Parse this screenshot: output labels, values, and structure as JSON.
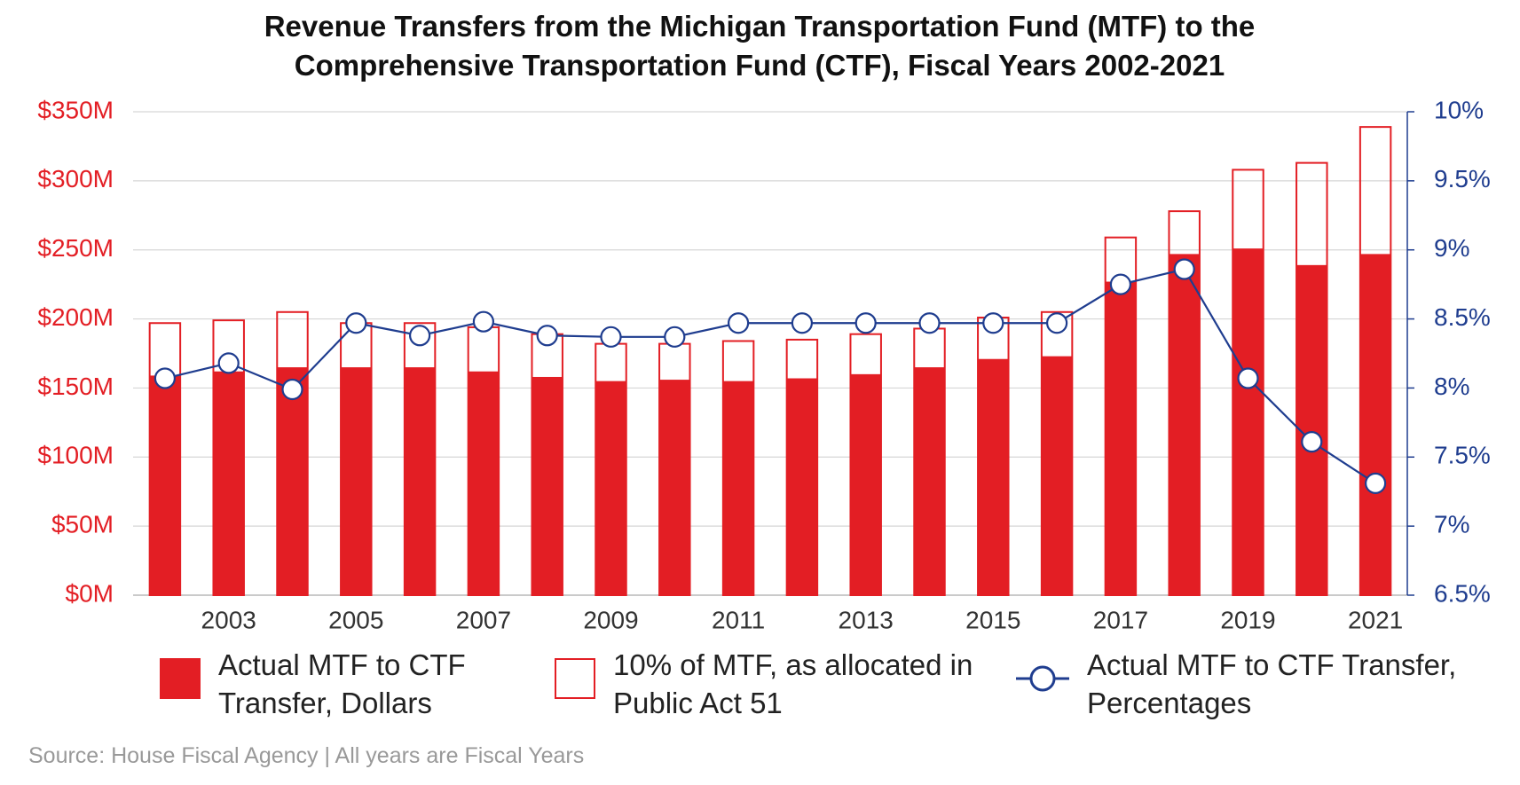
{
  "chart_data": {
    "type": "bar",
    "title": "Revenue Transfers from the Michigan Transportation Fund (MTF) to the Comprehensive Transportation Fund (CTF), Fiscal Years 2002-2021",
    "source": "Source: House Fiscal Agency | All years are Fiscal Years",
    "categories": [
      null,
      "2003",
      null,
      "2005",
      null,
      "2007",
      null,
      "2009",
      null,
      "2011",
      null,
      "2013",
      null,
      "2015",
      null,
      "2017",
      null,
      "2019",
      null,
      "2021"
    ],
    "series": [
      {
        "name": "Actual MTF to CTF Transfer, Dollars",
        "type": "bar",
        "fill": true,
        "color": "#e31e24",
        "values": [
          159,
          162,
          165,
          165,
          165,
          162,
          158,
          155,
          156,
          155,
          157,
          160,
          165,
          171,
          173,
          227,
          247,
          251,
          239,
          247
        ]
      },
      {
        "name": "10% of MTF, as allocated in Public Act 51",
        "type": "bar",
        "fill": false,
        "color": "#e31e24",
        "values": [
          197,
          199,
          205,
          197,
          197,
          194,
          189,
          182,
          182,
          184,
          185,
          189,
          193,
          201,
          205,
          259,
          278,
          308,
          313,
          339
        ]
      },
      {
        "name": "Actual MTF to CTF Transfer, Percentages",
        "type": "line",
        "axis": "y2",
        "color": "#1f3d8f",
        "values": [
          8.07,
          8.18,
          7.99,
          8.47,
          8.38,
          8.48,
          8.38,
          8.37,
          8.37,
          8.47,
          8.47,
          8.47,
          8.47,
          8.47,
          8.47,
          8.75,
          8.86,
          8.07,
          7.61,
          7.31
        ]
      }
    ],
    "ylim": [
      0,
      350
    ],
    "yticks": [
      {
        "value": 0,
        "label": "$0M"
      },
      {
        "value": 50,
        "label": "$50M"
      },
      {
        "value": 100,
        "label": "$100M"
      },
      {
        "value": 150,
        "label": "$150M"
      },
      {
        "value": 200,
        "label": "$200M"
      },
      {
        "value": 250,
        "label": "$250M"
      },
      {
        "value": 300,
        "label": "$300M"
      },
      {
        "value": 350,
        "label": "$350M"
      }
    ],
    "y2lim": [
      6.5,
      10
    ],
    "y2ticks": [
      {
        "value": 6.5,
        "label": "6.5%"
      },
      {
        "value": 7,
        "label": "7%"
      },
      {
        "value": 7.5,
        "label": "7.5%"
      },
      {
        "value": 8,
        "label": "8%"
      },
      {
        "value": 8.5,
        "label": "8.5%"
      },
      {
        "value": 9,
        "label": "9%"
      },
      {
        "value": 9.5,
        "label": "9.5%"
      },
      {
        "value": 10,
        "label": "10%"
      }
    ],
    "ycolor": "#e31e24",
    "y2color": "#1f3d8f",
    "grid": true,
    "legend": "bottom"
  }
}
